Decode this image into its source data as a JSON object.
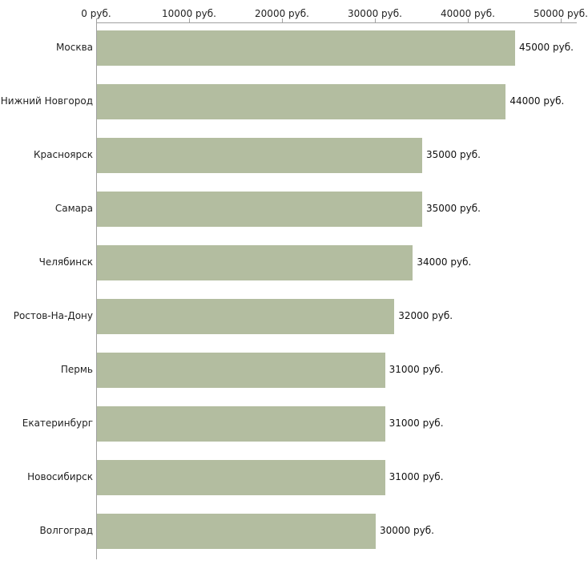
{
  "chart_data": {
    "type": "bar",
    "orientation": "horizontal",
    "title": "",
    "xlabel": "",
    "ylabel": "",
    "xlim": [
      0,
      50000
    ],
    "grid": false,
    "legend": "none",
    "bar_color": "#b3bda0",
    "axis_color": "#a0a0a0",
    "categories": [
      "Москва",
      "Нижний Новгород",
      "Красноярск",
      "Самара",
      "Челябинск",
      "Ростов-На-Дону",
      "Пермь",
      "Екатеринбург",
      "Новосибирск",
      "Волгоград"
    ],
    "values": [
      45000,
      44000,
      35000,
      35000,
      34000,
      32000,
      31000,
      31000,
      31000,
      30000
    ],
    "value_labels": [
      "45000 руб.",
      "44000 руб.",
      "35000 руб.",
      "35000 руб.",
      "34000 руб.",
      "32000 руб.",
      "31000 руб.",
      "31000 руб.",
      "31000 руб.",
      "30000 руб."
    ],
    "x_ticks": [
      {
        "value": 0,
        "label": "0 руб."
      },
      {
        "value": 10000,
        "label": "10000 руб."
      },
      {
        "value": 20000,
        "label": "20000 руб."
      },
      {
        "value": 30000,
        "label": "30000 руб."
      },
      {
        "value": 40000,
        "label": "40000 руб."
      },
      {
        "value": 50000,
        "label": "50000 руб."
      }
    ]
  }
}
